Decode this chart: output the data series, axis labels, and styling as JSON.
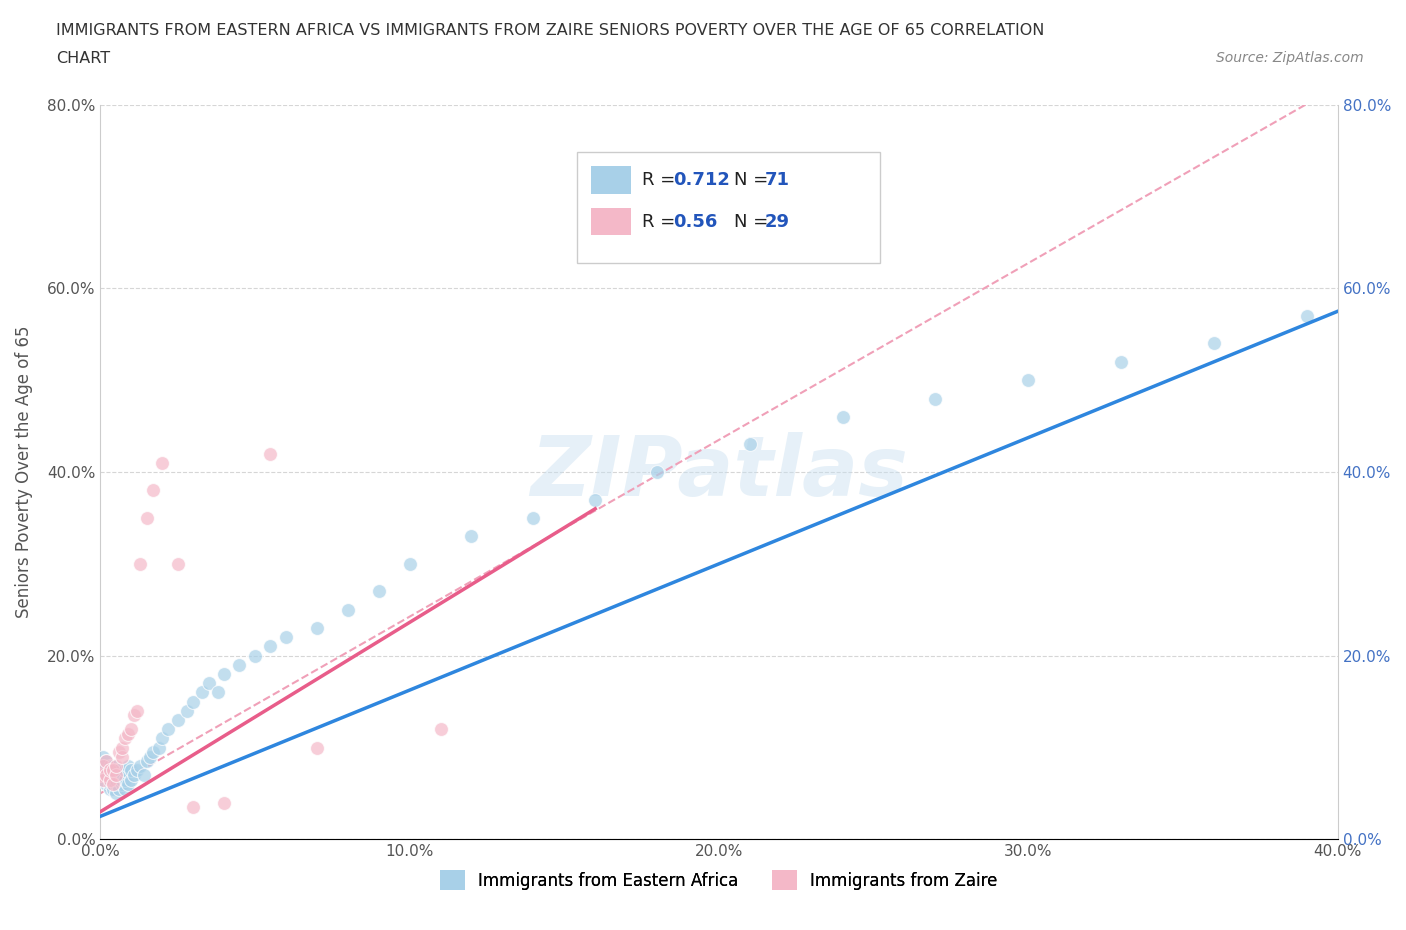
{
  "title_line1": "IMMIGRANTS FROM EASTERN AFRICA VS IMMIGRANTS FROM ZAIRE SENIORS POVERTY OVER THE AGE OF 65 CORRELATION",
  "title_line2": "CHART",
  "source_text": "Source: ZipAtlas.com",
  "ylabel": "Seniors Poverty Over the Age of 65",
  "watermark": "ZIPatlas",
  "R_eastern": 0.712,
  "N_eastern": 71,
  "R_zaire": 0.56,
  "N_zaire": 29,
  "color_eastern": "#a8d0e8",
  "color_zaire": "#f4b8c8",
  "line_eastern": "#2e86de",
  "line_zaire": "#e85d8a",
  "line_dashed": "#f0a0b8",
  "xlim": [
    0.0,
    0.4
  ],
  "ylim": [
    0.0,
    0.8
  ],
  "xticks": [
    0.0,
    0.1,
    0.2,
    0.3,
    0.4
  ],
  "yticks": [
    0.0,
    0.2,
    0.4,
    0.6,
    0.8
  ],
  "eastern_x": [
    0.0005,
    0.001,
    0.001,
    0.001,
    0.002,
    0.002,
    0.002,
    0.002,
    0.003,
    0.003,
    0.003,
    0.003,
    0.003,
    0.004,
    0.004,
    0.004,
    0.004,
    0.005,
    0.005,
    0.005,
    0.005,
    0.005,
    0.006,
    0.006,
    0.006,
    0.007,
    0.007,
    0.007,
    0.008,
    0.008,
    0.008,
    0.009,
    0.009,
    0.01,
    0.01,
    0.011,
    0.012,
    0.013,
    0.014,
    0.015,
    0.016,
    0.017,
    0.019,
    0.02,
    0.022,
    0.025,
    0.028,
    0.03,
    0.033,
    0.035,
    0.038,
    0.04,
    0.045,
    0.05,
    0.055,
    0.06,
    0.07,
    0.08,
    0.09,
    0.1,
    0.12,
    0.14,
    0.16,
    0.18,
    0.21,
    0.24,
    0.27,
    0.3,
    0.33,
    0.36,
    0.39
  ],
  "eastern_y": [
    0.065,
    0.075,
    0.08,
    0.09,
    0.06,
    0.07,
    0.08,
    0.085,
    0.055,
    0.06,
    0.07,
    0.075,
    0.08,
    0.055,
    0.065,
    0.07,
    0.08,
    0.05,
    0.06,
    0.065,
    0.07,
    0.075,
    0.055,
    0.065,
    0.075,
    0.06,
    0.065,
    0.07,
    0.055,
    0.065,
    0.075,
    0.06,
    0.08,
    0.065,
    0.075,
    0.07,
    0.075,
    0.08,
    0.07,
    0.085,
    0.09,
    0.095,
    0.1,
    0.11,
    0.12,
    0.13,
    0.14,
    0.15,
    0.16,
    0.17,
    0.16,
    0.18,
    0.19,
    0.2,
    0.21,
    0.22,
    0.23,
    0.25,
    0.27,
    0.3,
    0.33,
    0.35,
    0.37,
    0.4,
    0.43,
    0.46,
    0.48,
    0.5,
    0.52,
    0.54,
    0.57
  ],
  "zaire_x": [
    0.0005,
    0.001,
    0.001,
    0.002,
    0.002,
    0.003,
    0.003,
    0.004,
    0.004,
    0.005,
    0.005,
    0.006,
    0.007,
    0.007,
    0.008,
    0.009,
    0.01,
    0.011,
    0.012,
    0.013,
    0.015,
    0.017,
    0.02,
    0.025,
    0.03,
    0.04,
    0.055,
    0.07,
    0.11
  ],
  "zaire_y": [
    0.07,
    0.065,
    0.08,
    0.07,
    0.085,
    0.065,
    0.075,
    0.06,
    0.075,
    0.07,
    0.08,
    0.095,
    0.09,
    0.1,
    0.11,
    0.115,
    0.12,
    0.135,
    0.14,
    0.3,
    0.35,
    0.38,
    0.41,
    0.3,
    0.035,
    0.04,
    0.42,
    0.1,
    0.12
  ],
  "eastern_line_x": [
    0.0,
    0.4
  ],
  "eastern_line_y": [
    0.025,
    0.575
  ],
  "zaire_line_x": [
    0.0,
    0.16
  ],
  "zaire_line_y": [
    0.03,
    0.36
  ],
  "dashed_line_x": [
    0.0,
    0.4
  ],
  "dashed_line_y": [
    0.05,
    0.82
  ]
}
